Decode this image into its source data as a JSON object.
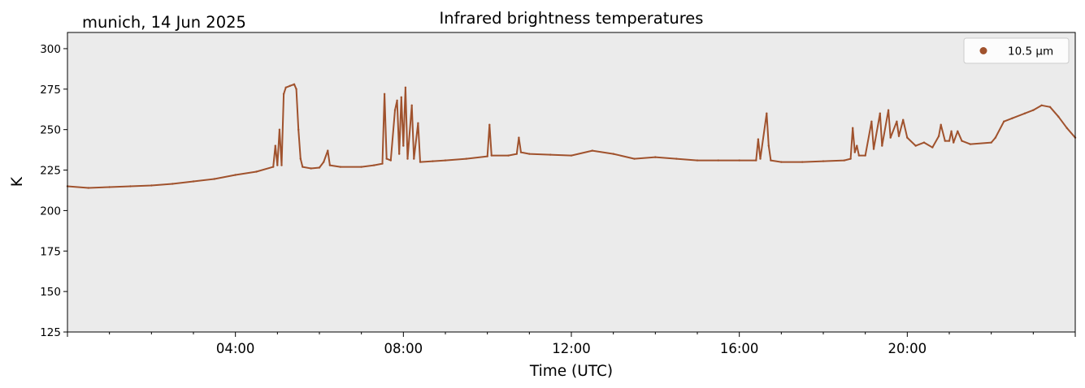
{
  "chart_data": {
    "type": "scatter",
    "title": "Infrared brightness temperatures",
    "subtitle": "munich, 14 Jun 2025",
    "xlabel": "Time (UTC)",
    "ylabel": "K",
    "xlim_hours": [
      0,
      24
    ],
    "ylim": [
      125,
      310
    ],
    "xticks": [
      {
        "hour": 4,
        "label": "04:00"
      },
      {
        "hour": 8,
        "label": "08:00"
      },
      {
        "hour": 12,
        "label": "12:00"
      },
      {
        "hour": 16,
        "label": "16:00"
      },
      {
        "hour": 20,
        "label": "20:00"
      }
    ],
    "yticks": [
      125,
      150,
      175,
      200,
      225,
      250,
      275,
      300
    ],
    "grid": false,
    "legend_position": "top-right",
    "background_color": "#ebebeb",
    "series": [
      {
        "name": "10.5 µm",
        "color": "#a0522d",
        "points": [
          [
            0.0,
            215
          ],
          [
            0.5,
            214
          ],
          [
            1.0,
            214.5
          ],
          [
            1.5,
            215
          ],
          [
            2.0,
            215.5
          ],
          [
            2.5,
            216.5
          ],
          [
            3.0,
            218
          ],
          [
            3.5,
            219.5
          ],
          [
            4.0,
            222
          ],
          [
            4.5,
            224
          ],
          [
            4.9,
            227
          ],
          [
            4.95,
            240
          ],
          [
            5.0,
            228
          ],
          [
            5.05,
            250
          ],
          [
            5.1,
            228
          ],
          [
            5.15,
            272
          ],
          [
            5.2,
            276
          ],
          [
            5.3,
            277
          ],
          [
            5.4,
            278
          ],
          [
            5.45,
            275
          ],
          [
            5.5,
            250
          ],
          [
            5.55,
            232
          ],
          [
            5.6,
            227
          ],
          [
            5.8,
            226
          ],
          [
            6.0,
            226.5
          ],
          [
            6.1,
            230
          ],
          [
            6.2,
            237
          ],
          [
            6.25,
            228
          ],
          [
            6.5,
            227
          ],
          [
            7.0,
            227
          ],
          [
            7.3,
            228
          ],
          [
            7.5,
            229
          ],
          [
            7.55,
            272
          ],
          [
            7.6,
            232
          ],
          [
            7.7,
            231
          ],
          [
            7.8,
            262
          ],
          [
            7.85,
            268
          ],
          [
            7.9,
            235
          ],
          [
            7.95,
            270
          ],
          [
            8.0,
            240
          ],
          [
            8.05,
            276
          ],
          [
            8.1,
            232
          ],
          [
            8.2,
            265
          ],
          [
            8.25,
            232
          ],
          [
            8.35,
            254
          ],
          [
            8.4,
            230
          ],
          [
            8.7,
            230.5
          ],
          [
            9.0,
            231
          ],
          [
            9.5,
            232
          ],
          [
            10.0,
            233.5
          ],
          [
            10.05,
            253
          ],
          [
            10.1,
            234
          ],
          [
            10.5,
            234
          ],
          [
            10.7,
            235
          ],
          [
            10.75,
            245
          ],
          [
            10.8,
            236
          ],
          [
            11.0,
            235
          ],
          [
            11.5,
            234.5
          ],
          [
            12.0,
            234
          ],
          [
            12.5,
            237
          ],
          [
            13.0,
            235
          ],
          [
            13.5,
            232
          ],
          [
            14.0,
            233
          ],
          [
            14.5,
            232
          ],
          [
            15.0,
            231
          ],
          [
            15.5,
            231
          ],
          [
            16.0,
            231
          ],
          [
            16.4,
            231
          ],
          [
            16.45,
            244
          ],
          [
            16.5,
            232
          ],
          [
            16.65,
            260
          ],
          [
            16.7,
            240
          ],
          [
            16.75,
            231
          ],
          [
            17.0,
            230
          ],
          [
            17.5,
            230
          ],
          [
            18.0,
            230.5
          ],
          [
            18.5,
            231
          ],
          [
            18.65,
            232
          ],
          [
            18.7,
            251
          ],
          [
            18.75,
            236
          ],
          [
            18.8,
            240
          ],
          [
            18.85,
            234
          ],
          [
            19.0,
            234
          ],
          [
            19.15,
            255
          ],
          [
            19.2,
            238
          ],
          [
            19.35,
            260
          ],
          [
            19.4,
            240
          ],
          [
            19.55,
            262
          ],
          [
            19.6,
            245
          ],
          [
            19.75,
            255
          ],
          [
            19.8,
            246
          ],
          [
            19.9,
            256
          ],
          [
            20.0,
            245
          ],
          [
            20.2,
            240
          ],
          [
            20.4,
            242
          ],
          [
            20.6,
            239
          ],
          [
            20.75,
            246
          ],
          [
            20.8,
            253
          ],
          [
            20.9,
            243
          ],
          [
            21.0,
            243
          ],
          [
            21.05,
            249
          ],
          [
            21.1,
            242
          ],
          [
            21.2,
            249
          ],
          [
            21.3,
            243
          ],
          [
            21.5,
            241
          ],
          [
            22.0,
            242
          ],
          [
            22.1,
            245
          ],
          [
            22.3,
            255
          ],
          [
            22.5,
            257
          ],
          [
            22.8,
            260
          ],
          [
            23.0,
            262
          ],
          [
            23.2,
            265
          ],
          [
            23.4,
            264
          ],
          [
            23.6,
            258
          ],
          [
            23.8,
            251
          ],
          [
            24.0,
            245
          ]
        ]
      }
    ]
  }
}
